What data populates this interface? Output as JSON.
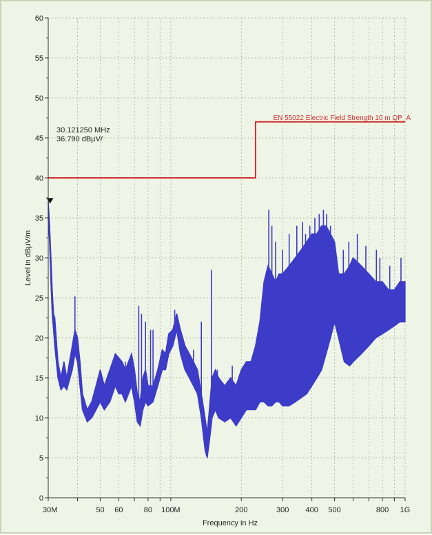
{
  "chart_data": {
    "type": "line",
    "x_scale": "log",
    "xlabel": "Frequency in Hz",
    "ylabel": "Level in dBμV/m",
    "xlim": [
      30000000,
      1000000000
    ],
    "ylim": [
      0,
      60
    ],
    "grid": true,
    "x_ticks": [
      {
        "value": 30000000,
        "label": "30M"
      },
      {
        "value": 40000000,
        "label": ""
      },
      {
        "value": 50000000,
        "label": "50"
      },
      {
        "value": 60000000,
        "label": "60"
      },
      {
        "value": 70000000,
        "label": ""
      },
      {
        "value": 80000000,
        "label": "80"
      },
      {
        "value": 90000000,
        "label": ""
      },
      {
        "value": 100000000,
        "label": "100M"
      },
      {
        "value": 200000000,
        "label": "200"
      },
      {
        "value": 300000000,
        "label": "300"
      },
      {
        "value": 400000000,
        "label": "400"
      },
      {
        "value": 500000000,
        "label": "500"
      },
      {
        "value": 600000000,
        "label": ""
      },
      {
        "value": 700000000,
        "label": ""
      },
      {
        "value": 800000000,
        "label": "800"
      },
      {
        "value": 900000000,
        "label": ""
      },
      {
        "value": 1000000000,
        "label": "1G"
      }
    ],
    "y_ticks": [
      0,
      5,
      10,
      15,
      20,
      25,
      30,
      35,
      40,
      45,
      50,
      55,
      60
    ],
    "limit_line": {
      "name": "EN 55022 Electric Field Strength 10 m QP_A",
      "color": "#d03030",
      "x": [
        30000000,
        230000000,
        230000000,
        1000000000
      ],
      "y": [
        40,
        40,
        47,
        47
      ]
    },
    "series": [
      {
        "color": "#3c3cc8",
        "envelope_upper": [
          [
            30000000,
            37
          ],
          [
            30400000,
            34
          ],
          [
            30800000,
            30
          ],
          [
            31200000,
            26
          ],
          [
            31600000,
            23
          ],
          [
            32000000,
            22.5
          ],
          [
            33000000,
            17
          ],
          [
            34000000,
            15
          ],
          [
            35000000,
            17
          ],
          [
            36000000,
            15
          ],
          [
            38000000,
            19
          ],
          [
            39000000,
            21
          ],
          [
            40000000,
            20
          ],
          [
            41000000,
            17
          ],
          [
            42000000,
            13
          ],
          [
            44000000,
            11
          ],
          [
            46000000,
            12
          ],
          [
            48000000,
            14
          ],
          [
            50000000,
            16
          ],
          [
            52000000,
            14
          ],
          [
            55000000,
            16
          ],
          [
            58000000,
            18
          ],
          [
            60000000,
            17.5
          ],
          [
            62000000,
            17
          ],
          [
            64000000,
            16
          ],
          [
            66000000,
            17
          ],
          [
            68000000,
            18
          ],
          [
            70000000,
            16
          ],
          [
            72000000,
            13
          ],
          [
            74000000,
            12
          ],
          [
            76000000,
            15
          ],
          [
            78000000,
            16
          ],
          [
            80000000,
            14
          ],
          [
            84000000,
            14
          ],
          [
            88000000,
            16
          ],
          [
            92000000,
            18.5
          ],
          [
            95000000,
            18
          ],
          [
            98000000,
            20.5
          ],
          [
            102000000,
            21
          ],
          [
            106000000,
            23
          ],
          [
            110000000,
            21
          ],
          [
            115000000,
            19
          ],
          [
            120000000,
            18
          ],
          [
            125000000,
            17
          ],
          [
            130000000,
            16
          ],
          [
            135000000,
            13
          ],
          [
            140000000,
            10
          ],
          [
            143000000,
            8
          ],
          [
            146000000,
            11
          ],
          [
            150000000,
            15
          ],
          [
            155000000,
            16
          ],
          [
            160000000,
            15
          ],
          [
            170000000,
            14
          ],
          [
            180000000,
            15
          ],
          [
            190000000,
            14
          ],
          [
            200000000,
            16
          ],
          [
            210000000,
            17
          ],
          [
            220000000,
            17
          ],
          [
            230000000,
            19
          ],
          [
            240000000,
            22
          ],
          [
            250000000,
            27
          ],
          [
            260000000,
            29
          ],
          [
            270000000,
            28
          ],
          [
            280000000,
            27
          ],
          [
            290000000,
            28
          ],
          [
            300000000,
            28
          ],
          [
            320000000,
            29
          ],
          [
            340000000,
            30
          ],
          [
            360000000,
            31
          ],
          [
            380000000,
            32
          ],
          [
            400000000,
            33
          ],
          [
            420000000,
            33
          ],
          [
            440000000,
            34
          ],
          [
            460000000,
            34
          ],
          [
            480000000,
            33
          ],
          [
            500000000,
            32
          ],
          [
            520000000,
            28
          ],
          [
            550000000,
            28
          ],
          [
            580000000,
            29
          ],
          [
            600000000,
            30
          ],
          [
            650000000,
            29
          ],
          [
            700000000,
            28
          ],
          [
            750000000,
            27
          ],
          [
            800000000,
            27
          ],
          [
            850000000,
            26
          ],
          [
            900000000,
            26
          ],
          [
            950000000,
            27
          ],
          [
            1000000000,
            27
          ]
        ],
        "envelope_lower": [
          [
            30000000,
            35
          ],
          [
            30400000,
            32
          ],
          [
            30800000,
            27
          ],
          [
            31200000,
            23
          ],
          [
            31600000,
            21
          ],
          [
            32000000,
            19
          ],
          [
            33000000,
            15
          ],
          [
            34000000,
            13.5
          ],
          [
            35000000,
            14
          ],
          [
            36000000,
            13.5
          ],
          [
            38000000,
            16
          ],
          [
            39000000,
            18
          ],
          [
            40000000,
            17
          ],
          [
            41000000,
            14
          ],
          [
            42000000,
            11
          ],
          [
            44000000,
            9.5
          ],
          [
            46000000,
            10
          ],
          [
            48000000,
            11
          ],
          [
            50000000,
            12
          ],
          [
            52000000,
            11
          ],
          [
            55000000,
            12
          ],
          [
            58000000,
            14
          ],
          [
            60000000,
            13
          ],
          [
            62000000,
            13
          ],
          [
            64000000,
            12
          ],
          [
            66000000,
            13
          ],
          [
            68000000,
            14
          ],
          [
            70000000,
            12
          ],
          [
            72000000,
            9.5
          ],
          [
            74000000,
            9
          ],
          [
            76000000,
            11
          ],
          [
            78000000,
            12
          ],
          [
            80000000,
            11.5
          ],
          [
            84000000,
            12
          ],
          [
            88000000,
            14
          ],
          [
            92000000,
            16
          ],
          [
            95000000,
            16
          ],
          [
            98000000,
            18
          ],
          [
            102000000,
            19
          ],
          [
            106000000,
            21
          ],
          [
            110000000,
            18
          ],
          [
            115000000,
            16
          ],
          [
            120000000,
            15
          ],
          [
            125000000,
            14
          ],
          [
            130000000,
            13
          ],
          [
            135000000,
            10
          ],
          [
            140000000,
            6
          ],
          [
            143000000,
            5
          ],
          [
            146000000,
            7
          ],
          [
            150000000,
            10
          ],
          [
            155000000,
            11
          ],
          [
            160000000,
            10
          ],
          [
            170000000,
            9.5
          ],
          [
            180000000,
            10
          ],
          [
            190000000,
            9
          ],
          [
            200000000,
            10
          ],
          [
            210000000,
            11
          ],
          [
            220000000,
            11
          ],
          [
            230000000,
            11
          ],
          [
            240000000,
            12
          ],
          [
            250000000,
            12
          ],
          [
            260000000,
            11.5
          ],
          [
            270000000,
            11.5
          ],
          [
            280000000,
            12
          ],
          [
            290000000,
            12
          ],
          [
            300000000,
            11.5
          ],
          [
            320000000,
            11.5
          ],
          [
            340000000,
            12
          ],
          [
            360000000,
            12.5
          ],
          [
            380000000,
            13
          ],
          [
            400000000,
            14
          ],
          [
            420000000,
            15
          ],
          [
            440000000,
            16
          ],
          [
            460000000,
            18
          ],
          [
            480000000,
            20
          ],
          [
            500000000,
            22
          ],
          [
            520000000,
            20
          ],
          [
            550000000,
            17
          ],
          [
            580000000,
            16.5
          ],
          [
            600000000,
            17
          ],
          [
            650000000,
            18
          ],
          [
            700000000,
            19
          ],
          [
            750000000,
            20
          ],
          [
            800000000,
            20.5
          ],
          [
            850000000,
            21
          ],
          [
            900000000,
            21.5
          ],
          [
            950000000,
            22
          ],
          [
            1000000000,
            22
          ]
        ],
        "spikes": [
          [
            39000000,
            25.2
          ],
          [
            56500000,
            17
          ],
          [
            64000000,
            17
          ],
          [
            73000000,
            24
          ],
          [
            75000000,
            23
          ],
          [
            78000000,
            22
          ],
          [
            82000000,
            21
          ],
          [
            84000000,
            21
          ],
          [
            104000000,
            23.5
          ],
          [
            125000000,
            18.5
          ],
          [
            135000000,
            22
          ],
          [
            149000000,
            28.5
          ],
          [
            158000000,
            16
          ],
          [
            183000000,
            16.5
          ],
          [
            262000000,
            36
          ],
          [
            270000000,
            34
          ],
          [
            280000000,
            32
          ],
          [
            300000000,
            31
          ],
          [
            320000000,
            33
          ],
          [
            345000000,
            34
          ],
          [
            365000000,
            34.5
          ],
          [
            376000000,
            33
          ],
          [
            392000000,
            34
          ],
          [
            412000000,
            35
          ],
          [
            430000000,
            35.5
          ],
          [
            448000000,
            36
          ],
          [
            463000000,
            35.5
          ],
          [
            480000000,
            34
          ],
          [
            545000000,
            31
          ],
          [
            575000000,
            32
          ],
          [
            625000000,
            33
          ],
          [
            680000000,
            31.5
          ],
          [
            754000000,
            31
          ],
          [
            780000000,
            30
          ],
          [
            860000000,
            29
          ],
          [
            960000000,
            30
          ]
        ]
      }
    ],
    "marker": {
      "frequency_text": "30.121250 MHz",
      "level_text": "36.790 dBμV/",
      "x": 30121250,
      "y": 36.79
    }
  }
}
